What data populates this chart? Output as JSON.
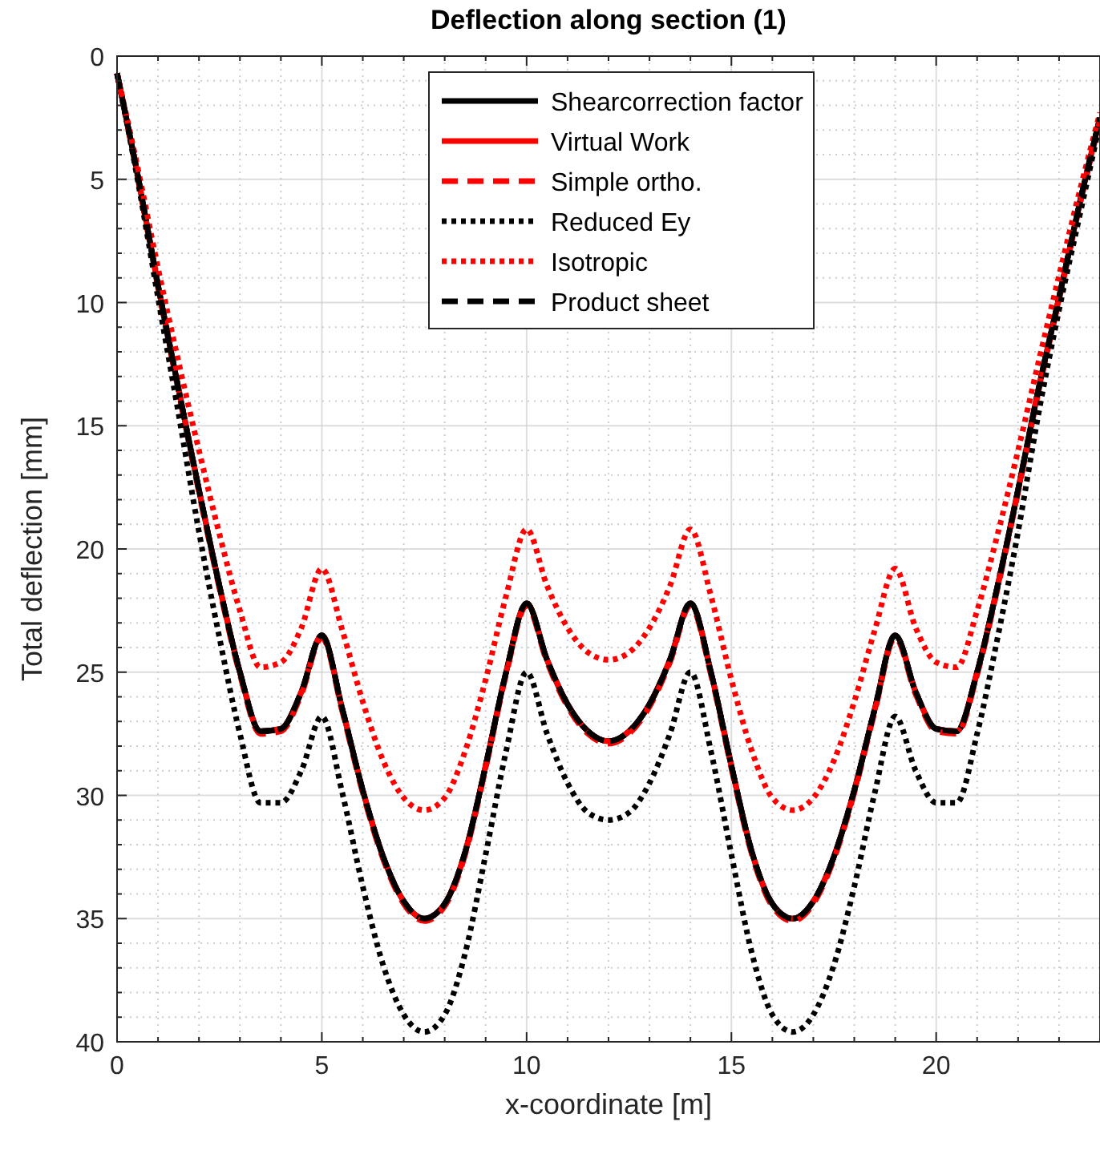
{
  "chart_data": {
    "type": "line",
    "title": "Deflection along section (1)",
    "xlabel": "x-coordinate [m]",
    "ylabel": "Total deflection [mm]",
    "x": [
      0,
      0.5,
      1,
      1.5,
      2,
      2.5,
      3,
      3.5,
      4,
      4.5,
      5,
      5.5,
      6,
      6.5,
      7,
      7.5,
      8,
      8.5,
      9,
      9.5,
      10,
      10.5,
      11,
      11.5,
      12,
      12.5,
      13,
      13.5,
      14,
      14.5,
      15,
      15.5,
      16,
      16.5,
      17,
      17.5,
      18,
      18.5,
      19,
      19.5,
      20,
      20.5,
      21,
      21.5,
      22,
      22.5,
      23,
      23.5,
      24
    ],
    "xlim": [
      0,
      24
    ],
    "ylim": [
      40,
      0
    ],
    "xticks": [
      0,
      {
        "value": 1,
        "label": null
      },
      {
        "value": 2,
        "label": null
      },
      {
        "value": 3,
        "label": null
      },
      {
        "value": 4,
        "label": null
      },
      5,
      {
        "value": 6,
        "label": null
      },
      {
        "value": 7,
        "label": null
      },
      {
        "value": 8,
        "label": null
      },
      {
        "value": 9,
        "label": null
      },
      10,
      {
        "value": 11,
        "label": null
      },
      {
        "value": 12,
        "label": null
      },
      {
        "value": 13,
        "label": null
      },
      {
        "value": 14,
        "label": null
      },
      15,
      {
        "value": 16,
        "label": null
      },
      {
        "value": 17,
        "label": null
      },
      {
        "value": 18,
        "label": null
      },
      {
        "value": 19,
        "label": null
      },
      20,
      {
        "value": 21,
        "label": null
      },
      {
        "value": 22,
        "label": null
      },
      {
        "value": 23,
        "label": null
      },
      {
        "value": 24,
        "label": null
      }
    ],
    "yticks": [
      0,
      {
        "value": 1,
        "label": null
      },
      {
        "value": 2,
        "label": null
      },
      {
        "value": 3,
        "label": null
      },
      {
        "value": 4,
        "label": null
      },
      5,
      {
        "value": 6,
        "label": null
      },
      {
        "value": 7,
        "label": null
      },
      {
        "value": 8,
        "label": null
      },
      {
        "value": 9,
        "label": null
      },
      10,
      {
        "value": 11,
        "label": null
      },
      {
        "value": 12,
        "label": null
      },
      {
        "value": 13,
        "label": null
      },
      {
        "value": 14,
        "label": null
      },
      15,
      {
        "value": 16,
        "label": null
      },
      {
        "value": 17,
        "label": null
      },
      {
        "value": 18,
        "label": null
      },
      {
        "value": 19,
        "label": null
      },
      20,
      {
        "value": 21,
        "label": null
      },
      {
        "value": 22,
        "label": null
      },
      {
        "value": 23,
        "label": null
      },
      {
        "value": 24,
        "label": null
      },
      25,
      {
        "value": 26,
        "label": null
      },
      {
        "value": 27,
        "label": null
      },
      {
        "value": 28,
        "label": null
      },
      {
        "value": 29,
        "label": null
      },
      30,
      {
        "value": 31,
        "label": null
      },
      {
        "value": 32,
        "label": null
      },
      {
        "value": 33,
        "label": null
      },
      {
        "value": 34,
        "label": null
      },
      35,
      {
        "value": 36,
        "label": null
      },
      {
        "value": 37,
        "label": null
      },
      {
        "value": 38,
        "label": null
      },
      {
        "value": 39,
        "label": null
      },
      40
    ],
    "grid": true,
    "legend": "top",
    "marker": "none",
    "series": [
      {
        "name": "Shearcorrection factor",
        "color": "#000000",
        "line_style": "solid",
        "values": [
          0.7,
          4.8,
          9.3,
          13.5,
          17.6,
          21.5,
          25.0,
          27.4,
          27.3,
          25.8,
          23.5,
          26.5,
          29.8,
          32.5,
          34.3,
          35.0,
          34.4,
          32.3,
          28.8,
          25.0,
          22.2,
          24.5,
          26.3,
          27.4,
          27.8,
          27.4,
          26.3,
          24.5,
          22.2,
          25.0,
          28.8,
          32.3,
          34.4,
          35.0,
          34.3,
          32.5,
          29.8,
          26.5,
          23.5,
          25.8,
          27.3,
          27.4,
          25.0,
          21.5,
          17.6,
          13.5,
          9.8,
          6.0,
          2.5
        ]
      },
      {
        "name": "Virtual Work",
        "color": "#ff0000",
        "line_style": "solid",
        "values": [
          0.7,
          4.8,
          9.3,
          13.5,
          17.6,
          21.5,
          25.0,
          27.4,
          27.3,
          25.8,
          23.5,
          26.5,
          29.8,
          32.5,
          34.3,
          35.0,
          34.4,
          32.3,
          28.8,
          25.0,
          22.2,
          24.5,
          26.3,
          27.4,
          27.8,
          27.4,
          26.3,
          24.5,
          22.2,
          25.0,
          28.8,
          32.3,
          34.4,
          35.0,
          34.3,
          32.5,
          29.8,
          26.5,
          23.5,
          25.8,
          27.3,
          27.4,
          25.0,
          21.5,
          17.6,
          13.5,
          9.8,
          6.0,
          2.5
        ]
      },
      {
        "color": "#000000",
        "line_style": "dashdot",
        "values": [
          0.7,
          4.8,
          9.3,
          13.5,
          17.6,
          21.5,
          25.0,
          27.4,
          27.3,
          25.8,
          23.5,
          26.5,
          29.8,
          32.5,
          34.3,
          35.0,
          34.4,
          32.3,
          28.8,
          25.0,
          22.2,
          24.5,
          26.3,
          27.4,
          27.8,
          27.4,
          26.3,
          24.5,
          22.2,
          25.0,
          28.8,
          32.3,
          34.4,
          35.0,
          34.3,
          32.5,
          29.8,
          26.5,
          23.5,
          25.8,
          27.3,
          27.4,
          25.0,
          21.5,
          17.6,
          13.5,
          9.8,
          6.0,
          2.5
        ]
      },
      {
        "name": "Simple ortho.",
        "color": "#ff0000",
        "line_style": "dashed",
        "values": [
          0.7,
          4.9,
          9.4,
          13.6,
          17.7,
          21.6,
          25.1,
          27.5,
          27.4,
          25.9,
          23.6,
          26.6,
          29.9,
          32.6,
          34.4,
          35.1,
          34.5,
          32.4,
          28.9,
          25.1,
          22.3,
          24.6,
          26.4,
          27.5,
          27.9,
          27.5,
          26.4,
          24.6,
          22.3,
          25.1,
          28.9,
          32.4,
          34.5,
          35.1,
          34.4,
          32.6,
          29.9,
          26.6,
          23.6,
          25.9,
          27.4,
          27.5,
          25.1,
          21.6,
          17.7,
          13.6,
          9.9,
          6.1,
          2.6
        ]
      },
      {
        "name": "Reduced Ey",
        "color": "#000000",
        "line_style": "dotted",
        "values": [
          0.7,
          5.0,
          9.8,
          14.5,
          19.3,
          23.6,
          27.5,
          30.3,
          30.3,
          29.0,
          26.8,
          29.9,
          33.7,
          36.9,
          38.9,
          39.6,
          38.9,
          36.4,
          32.4,
          28.2,
          25.0,
          27.5,
          29.5,
          30.7,
          31.0,
          30.7,
          29.5,
          27.5,
          25.0,
          28.2,
          32.4,
          36.4,
          38.9,
          39.6,
          38.9,
          36.9,
          33.7,
          29.9,
          26.8,
          29.0,
          30.3,
          30.3,
          27.5,
          23.6,
          19.3,
          14.5,
          10.3,
          6.5,
          2.7
        ]
      },
      {
        "name": "Isotropic",
        "color": "#ff0000",
        "line_style": "dotted",
        "values": [
          0.7,
          4.5,
          8.6,
          12.4,
          16.0,
          19.4,
          22.5,
          24.8,
          24.6,
          23.2,
          20.8,
          23.3,
          26.2,
          28.6,
          30.1,
          30.6,
          30.1,
          28.2,
          25.3,
          21.9,
          19.2,
          21.5,
          23.2,
          24.2,
          24.5,
          24.2,
          23.2,
          21.5,
          19.2,
          21.9,
          25.3,
          28.2,
          30.1,
          30.6,
          30.1,
          28.6,
          26.2,
          23.3,
          20.8,
          23.2,
          24.6,
          24.8,
          22.5,
          19.4,
          16.0,
          12.4,
          8.9,
          5.5,
          2.3
        ]
      },
      {
        "name": "Product sheet",
        "color": "#000000",
        "line_style": "dashed",
        "values": [
          0.7,
          4.8,
          9.3,
          13.5,
          17.6,
          21.5,
          25.0,
          27.4,
          27.3,
          25.8,
          23.5,
          26.5,
          29.8,
          32.5,
          34.3,
          35.0,
          34.4,
          32.3,
          28.8,
          25.0,
          22.2,
          24.5,
          26.3,
          27.4,
          27.8,
          27.4,
          26.3,
          24.5,
          22.2,
          25.0,
          28.8,
          32.3,
          34.4,
          35.0,
          34.3,
          32.5,
          29.8,
          26.5,
          23.5,
          25.8,
          27.3,
          27.4,
          25.0,
          21.5,
          17.6,
          13.5,
          9.8,
          6.0,
          2.5
        ]
      }
    ]
  }
}
